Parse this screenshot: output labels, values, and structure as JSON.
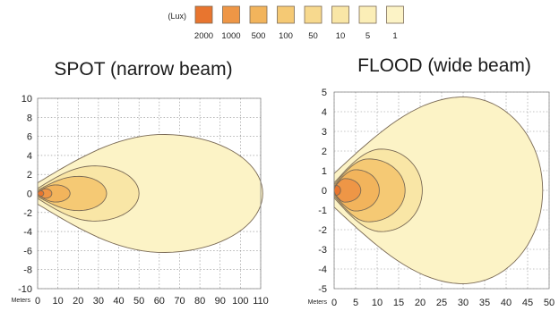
{
  "legend": {
    "unit_label": "(Lux)",
    "items": [
      {
        "label": "2000",
        "color": "#e8752f"
      },
      {
        "label": "1000",
        "color": "#ee9646"
      },
      {
        "label": "500",
        "color": "#f2b45c"
      },
      {
        "label": "100",
        "color": "#f5c974"
      },
      {
        "label": "50",
        "color": "#f7d98e"
      },
      {
        "label": "10",
        "color": "#f9e6a6"
      },
      {
        "label": "5",
        "color": "#fbeeb7"
      },
      {
        "label": "1",
        "color": "#fcf3c6"
      }
    ]
  },
  "chart_data": [
    {
      "type": "area",
      "title": "SPOT (narrow beam)",
      "xlabel": "Meters",
      "ylabel": "",
      "xlim": [
        0,
        110
      ],
      "ylim": [
        -10,
        10
      ],
      "x_ticks": [
        0,
        10,
        20,
        30,
        40,
        50,
        60,
        70,
        80,
        90,
        100,
        110
      ],
      "y_ticks": [
        10,
        8,
        6,
        4,
        2,
        0,
        -2,
        -4,
        -6,
        -8,
        -10
      ],
      "grid": true,
      "series": [
        {
          "name": "1",
          "max_x": 111,
          "half_width": 6.2,
          "peak_x": 62
        },
        {
          "name": "10",
          "max_x": 50,
          "half_width": 2.9,
          "peak_x": 28
        },
        {
          "name": "100",
          "max_x": 34,
          "half_width": 1.8,
          "peak_x": 20
        },
        {
          "name": "500",
          "max_x": 16,
          "half_width": 0.9,
          "peak_x": 9
        },
        {
          "name": "1000",
          "max_x": 7,
          "half_width": 0.5,
          "peak_x": 4
        },
        {
          "name": "2000",
          "max_x": 3,
          "half_width": 0.3,
          "peak_x": 1.5
        }
      ]
    },
    {
      "type": "area",
      "title": "FLOOD (wide beam)",
      "xlabel": "Meters",
      "ylabel": "",
      "xlim": [
        0,
        50
      ],
      "ylim": [
        -5,
        5
      ],
      "x_ticks": [
        0,
        5,
        10,
        15,
        20,
        25,
        30,
        35,
        40,
        45,
        50
      ],
      "y_ticks": [
        5,
        4,
        3,
        2,
        1,
        0,
        -1,
        -2,
        -3,
        -4,
        -5
      ],
      "grid": true,
      "series": [
        {
          "name": "1",
          "max_x": 48.5,
          "half_width": 4.75,
          "peak_x": 30
        },
        {
          "name": "10",
          "max_x": 20.5,
          "half_width": 2.1,
          "peak_x": 11
        },
        {
          "name": "100",
          "max_x": 16.5,
          "half_width": 1.6,
          "peak_x": 8
        },
        {
          "name": "500",
          "max_x": 10.5,
          "half_width": 1.05,
          "peak_x": 5
        },
        {
          "name": "1000",
          "max_x": 6.2,
          "half_width": 0.6,
          "peak_x": 2.5
        },
        {
          "name": "2000",
          "max_x": 1.5,
          "half_width": 0.25,
          "peak_x": 0.5
        }
      ]
    }
  ]
}
